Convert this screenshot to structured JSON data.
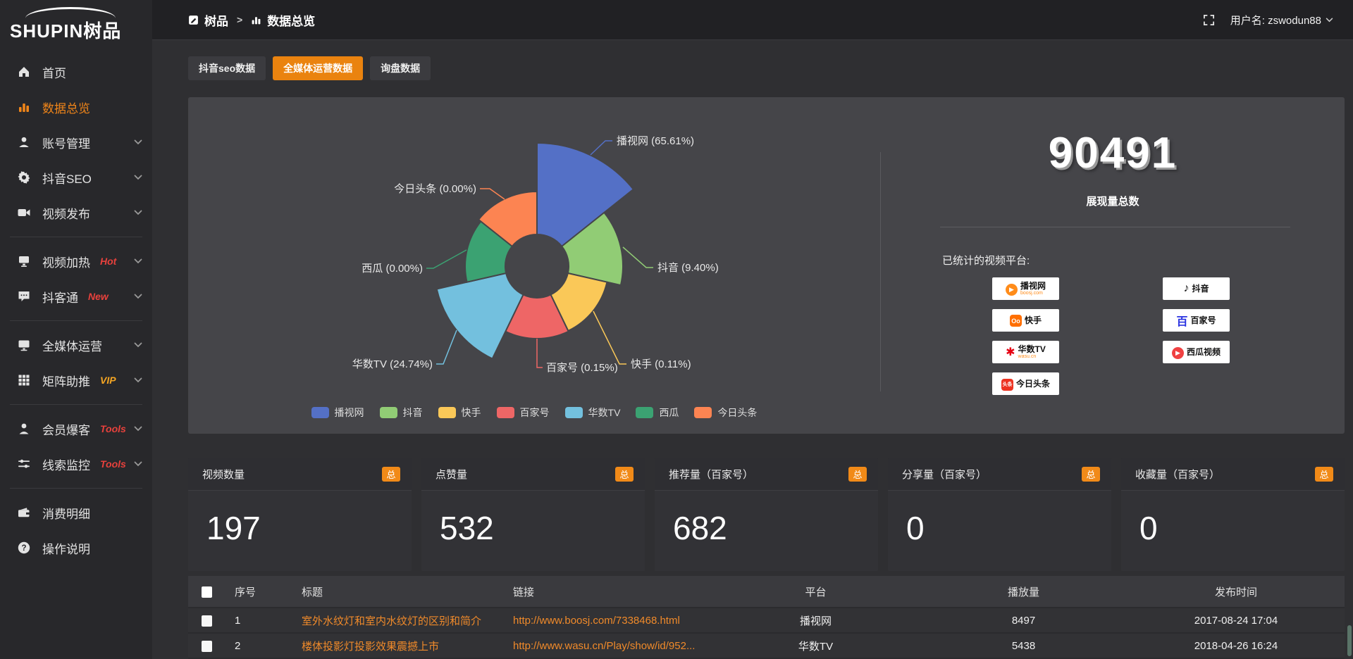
{
  "brand": {
    "logo_text": "SHUPIN树品"
  },
  "topbar": {
    "breadcrumb": [
      "树品",
      "数据总览"
    ],
    "breadcrumb_separator": ">",
    "username": "用户名: zswodun88"
  },
  "sidebar": {
    "items": [
      {
        "icon": "home-icon",
        "label": "首页"
      },
      {
        "icon": "chart-icon",
        "label": "数据总览",
        "active": true
      },
      {
        "icon": "user-icon",
        "label": "账号管理",
        "chevron": true
      },
      {
        "icon": "gear-icon",
        "label": "抖音SEO",
        "chevron": true
      },
      {
        "icon": "video-icon",
        "label": "视频发布",
        "chevron": true
      },
      {
        "icon": "heat-icon",
        "label": "视频加热",
        "tag": "Hot",
        "tag_color": "#e8413c",
        "chevron": true,
        "divider_before": true
      },
      {
        "icon": "chat-icon",
        "label": "抖客通",
        "tag": "New",
        "tag_color": "#e8413c",
        "chevron": true
      },
      {
        "icon": "monitor-icon",
        "label": "全媒体运营",
        "chevron": true,
        "divider_before": true
      },
      {
        "icon": "grid-icon",
        "label": "矩阵助推",
        "tag": "VIP",
        "tag_color": "#f5a623",
        "chevron": true
      },
      {
        "icon": "member-icon",
        "label": "会员爆客",
        "tag": "Tools",
        "tag_color": "#e8413c",
        "chevron": true,
        "divider_before": true
      },
      {
        "icon": "sliders-icon",
        "label": "线索监控",
        "tag": "Tools",
        "tag_color": "#e8413c",
        "chevron": true
      },
      {
        "icon": "wallet-icon",
        "label": "消费明细",
        "divider_before": true
      },
      {
        "icon": "question-icon",
        "label": "操作说明"
      }
    ]
  },
  "tabs": [
    {
      "label": "抖音seo数据",
      "active": false
    },
    {
      "label": "全媒体运营数据",
      "active": true
    },
    {
      "label": "询盘数据",
      "active": false
    }
  ],
  "chart_data": {
    "type": "pie",
    "subtype": "nightingale-rose-donut",
    "label_format": "{name} ({value}%)",
    "legend_position": "bottom",
    "slices": [
      {
        "name": "播视网",
        "pct": 65.61,
        "color": "#5470c6",
        "display_r": 175
      },
      {
        "name": "抖音",
        "pct": 9.4,
        "color": "#91cc75",
        "display_r": 122
      },
      {
        "name": "快手",
        "pct": 0.11,
        "color": "#fac858",
        "display_r": 102
      },
      {
        "name": "百家号",
        "pct": 0.15,
        "color": "#ee6666",
        "display_r": 103
      },
      {
        "name": "华数TV",
        "pct": 24.74,
        "color": "#73c0de",
        "display_r": 146
      },
      {
        "name": "西瓜",
        "pct": 0.0,
        "color": "#3ba272",
        "display_r": 102
      },
      {
        "name": "今日头条",
        "pct": 0.0,
        "color": "#fc8452",
        "display_r": 106
      }
    ]
  },
  "summary": {
    "total_value": "90491",
    "total_label": "展现量总数",
    "platforms_label": "已统计的视频平台:",
    "platforms": [
      {
        "name": "播视网",
        "sub": "boosj.com",
        "logo": "boosj-logo"
      },
      {
        "name": "抖音",
        "logo": "douyin-logo"
      },
      {
        "name": "快手",
        "logo": "kuaishou-logo"
      },
      {
        "name": "百家号",
        "logo": "baijiahao-logo"
      },
      {
        "name": "华数TV",
        "sub": "wasu.cn",
        "logo": "wasu-logo"
      },
      {
        "name": "西瓜视频",
        "logo": "xigua-logo"
      },
      {
        "name": "今日头条",
        "logo": "toutiao-logo"
      }
    ]
  },
  "stat_cards": [
    {
      "label": "视频数量",
      "badge": "总",
      "value": "197"
    },
    {
      "label": "点赞量",
      "badge": "总",
      "value": "532"
    },
    {
      "label": "推荐量（百家号）",
      "badge": "总",
      "value": "682"
    },
    {
      "label": "分享量（百家号）",
      "badge": "总",
      "value": "0"
    },
    {
      "label": "收藏量（百家号）",
      "badge": "总",
      "value": "0"
    }
  ],
  "table": {
    "headers": [
      "序号",
      "标题",
      "链接",
      "平台",
      "播放量",
      "发布时间"
    ],
    "rows": [
      {
        "no": "1",
        "title": "室外水纹灯和室内水纹灯的区别和简介",
        "link": "http://www.boosj.com/7338468.html",
        "platform": "播视网",
        "plays": "8497",
        "time": "2017-08-24 17:04"
      },
      {
        "no": "2",
        "title": "楼体投影灯投影效果震撼上市",
        "link": "http://www.wasu.cn/Play/show/id/952...",
        "platform": "华数TV",
        "plays": "5438",
        "time": "2018-04-26 16:24"
      },
      {
        "no": "",
        "title": "",
        "link": "",
        "platform": "",
        "plays": "",
        "time": ""
      }
    ]
  }
}
